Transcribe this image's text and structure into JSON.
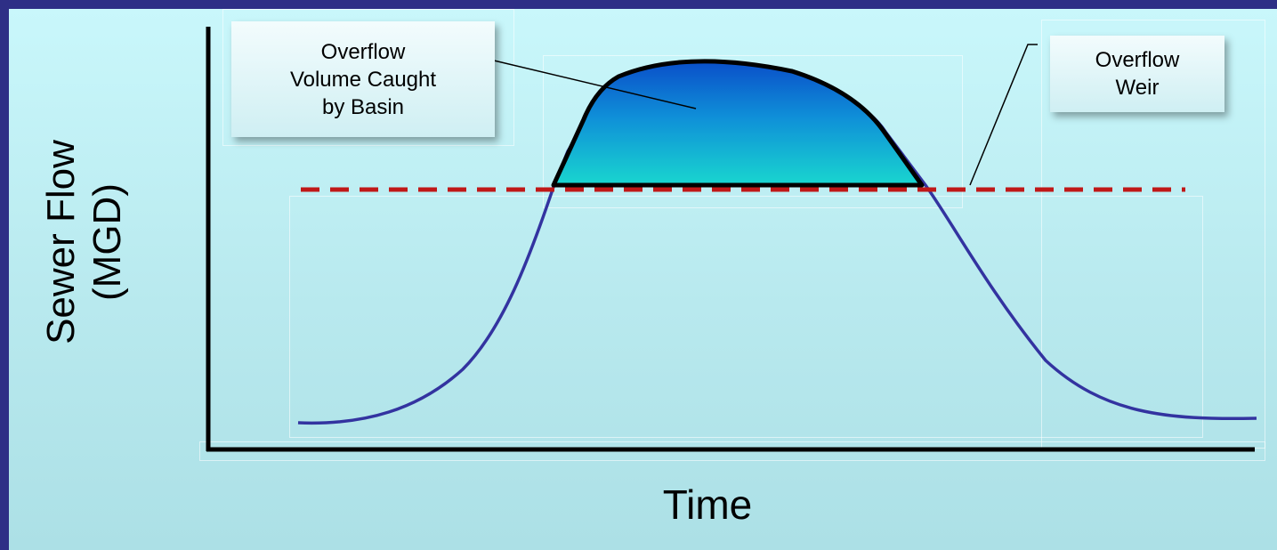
{
  "diagram": {
    "y_axis_label": [
      "Sewer Flow",
      "(MGD)"
    ],
    "x_axis_label": "Time",
    "callouts": {
      "basin": [
        "Overflow",
        "Volume Caught",
        "by Basin"
      ],
      "weir": [
        "Overflow",
        "Weir"
      ]
    },
    "colors": {
      "frame": "#2e2f86",
      "hydrograph_line": "#3333a0",
      "weir_line": "#c01818",
      "basin_fill_top": "#0a4fc9",
      "basin_fill_bottom": "#19d6cf",
      "axes": "#000000"
    }
  }
}
